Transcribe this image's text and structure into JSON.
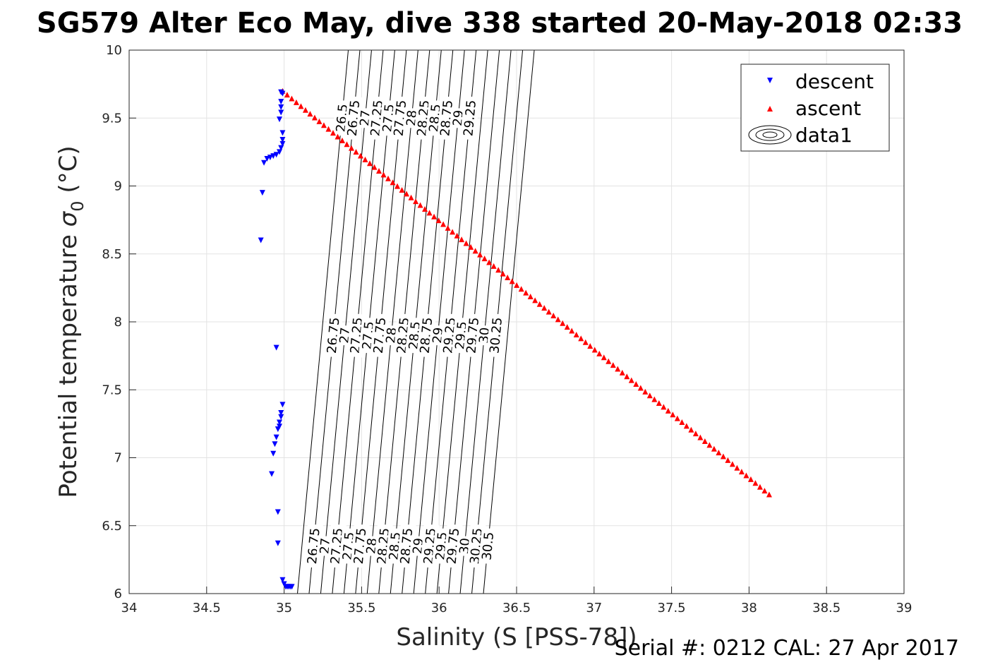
{
  "page": {
    "title": "SG579 Alter Eco May, dive 338 started 20-May-2018 02:33",
    "footer": "Serial #: 0212  CAL: 27 Apr 2017"
  },
  "chart_data": {
    "type": "scatter",
    "title": "SG579 Alter Eco May, dive 338 started 20-May-2018 02:33",
    "xlabel": "Salinity (S [PSS-78])",
    "ylabel_main": "Potential temperature ",
    "ylabel_sigma": "σ",
    "ylabel_sub": "0",
    "ylabel_unit": " (°C)",
    "xlim": [
      34,
      39
    ],
    "ylim": [
      6,
      10
    ],
    "xticks": [
      34,
      34.5,
      35,
      35.5,
      36,
      36.5,
      37,
      37.5,
      38,
      38.5,
      39
    ],
    "yticks": [
      6,
      6.5,
      7,
      7.5,
      8,
      8.5,
      9,
      9.5,
      10
    ],
    "xtick_labels": [
      "34",
      "34.5",
      "35",
      "35.5",
      "36",
      "36.5",
      "37",
      "37.5",
      "38",
      "38.5",
      "39"
    ],
    "ytick_labels": [
      "6",
      "6.5",
      "7",
      "7.5",
      "8",
      "8.5",
      "9",
      "9.5",
      "10"
    ],
    "grid": true,
    "legend_position": "top-right",
    "series": [
      {
        "name": "descent",
        "marker": "triangle-down",
        "color": "#0000ff",
        "points": [
          [
            34.98,
            9.69
          ],
          [
            34.99,
            9.68
          ],
          [
            34.98,
            9.62
          ],
          [
            34.98,
            9.58
          ],
          [
            34.98,
            9.54
          ],
          [
            34.97,
            9.49
          ],
          [
            34.99,
            9.39
          ],
          [
            34.99,
            9.34
          ],
          [
            34.99,
            9.31
          ],
          [
            34.98,
            9.28
          ],
          [
            34.97,
            9.25
          ],
          [
            34.95,
            9.23
          ],
          [
            34.93,
            9.22
          ],
          [
            34.91,
            9.21
          ],
          [
            34.89,
            9.2
          ],
          [
            34.87,
            9.17
          ],
          [
            34.86,
            8.95
          ],
          [
            34.85,
            8.6
          ],
          [
            34.95,
            7.81
          ],
          [
            34.99,
            7.39
          ],
          [
            34.98,
            7.33
          ],
          [
            34.98,
            7.3
          ],
          [
            34.97,
            7.26
          ],
          [
            34.97,
            7.23
          ],
          [
            34.96,
            7.21
          ],
          [
            34.95,
            7.15
          ],
          [
            34.94,
            7.1
          ],
          [
            34.93,
            7.03
          ],
          [
            34.92,
            6.88
          ],
          [
            34.96,
            6.6
          ],
          [
            34.96,
            6.37
          ],
          [
            34.99,
            6.1
          ],
          [
            35.0,
            6.07
          ],
          [
            35.01,
            6.05
          ],
          [
            35.02,
            6.05
          ],
          [
            35.03,
            6.05
          ],
          [
            35.04,
            6.05
          ],
          [
            35.05,
            6.05
          ]
        ]
      },
      {
        "name": "ascent",
        "marker": "triangle-up",
        "color": "#ff0000",
        "start": [
          34.99,
          9.7
        ],
        "end": [
          38.13,
          6.73
        ],
        "count": 107
      },
      {
        "name": "data1",
        "marker": "contour",
        "color": "#000000"
      }
    ],
    "density_contours": {
      "levels": [
        26.5,
        26.75,
        27,
        27.25,
        27.5,
        27.75,
        28,
        28.25,
        28.5,
        28.75,
        29,
        29.25,
        29.5,
        29.75,
        30,
        30.25,
        30.5
      ],
      "level_labels": [
        "26.5",
        "26.75",
        "27",
        "27.25",
        "27.5",
        "27.75",
        "28",
        "28.25",
        "28.5",
        "28.75",
        "29",
        "29.25",
        "29.5",
        "29.75",
        "30",
        "30.25",
        "30.5"
      ],
      "label_rows": [
        {
          "label_temp": 9.5,
          "levels": [
            "26.5",
            "26.75",
            "27",
            "27.25",
            "27.5",
            "27.75",
            "28",
            "28.25",
            "28.5",
            "28.75",
            "29",
            "29.25"
          ]
        },
        {
          "label_temp": 7.9,
          "levels": [
            "26.75",
            "27",
            "27.25",
            "27.5",
            "27.75",
            "28",
            "28.25",
            "28.5",
            "28.75",
            "29",
            "29.25",
            "29.5",
            "29.75",
            "30",
            "30.25"
          ]
        },
        {
          "label_temp": 6.35,
          "levels": [
            "26.75",
            "27",
            "27.25",
            "27.5",
            "27.75",
            "28",
            "28.25",
            "28.5",
            "28.75",
            "29",
            "29.25",
            "29.5",
            "29.75",
            "30",
            "30.25",
            "30.5"
          ]
        }
      ]
    }
  }
}
